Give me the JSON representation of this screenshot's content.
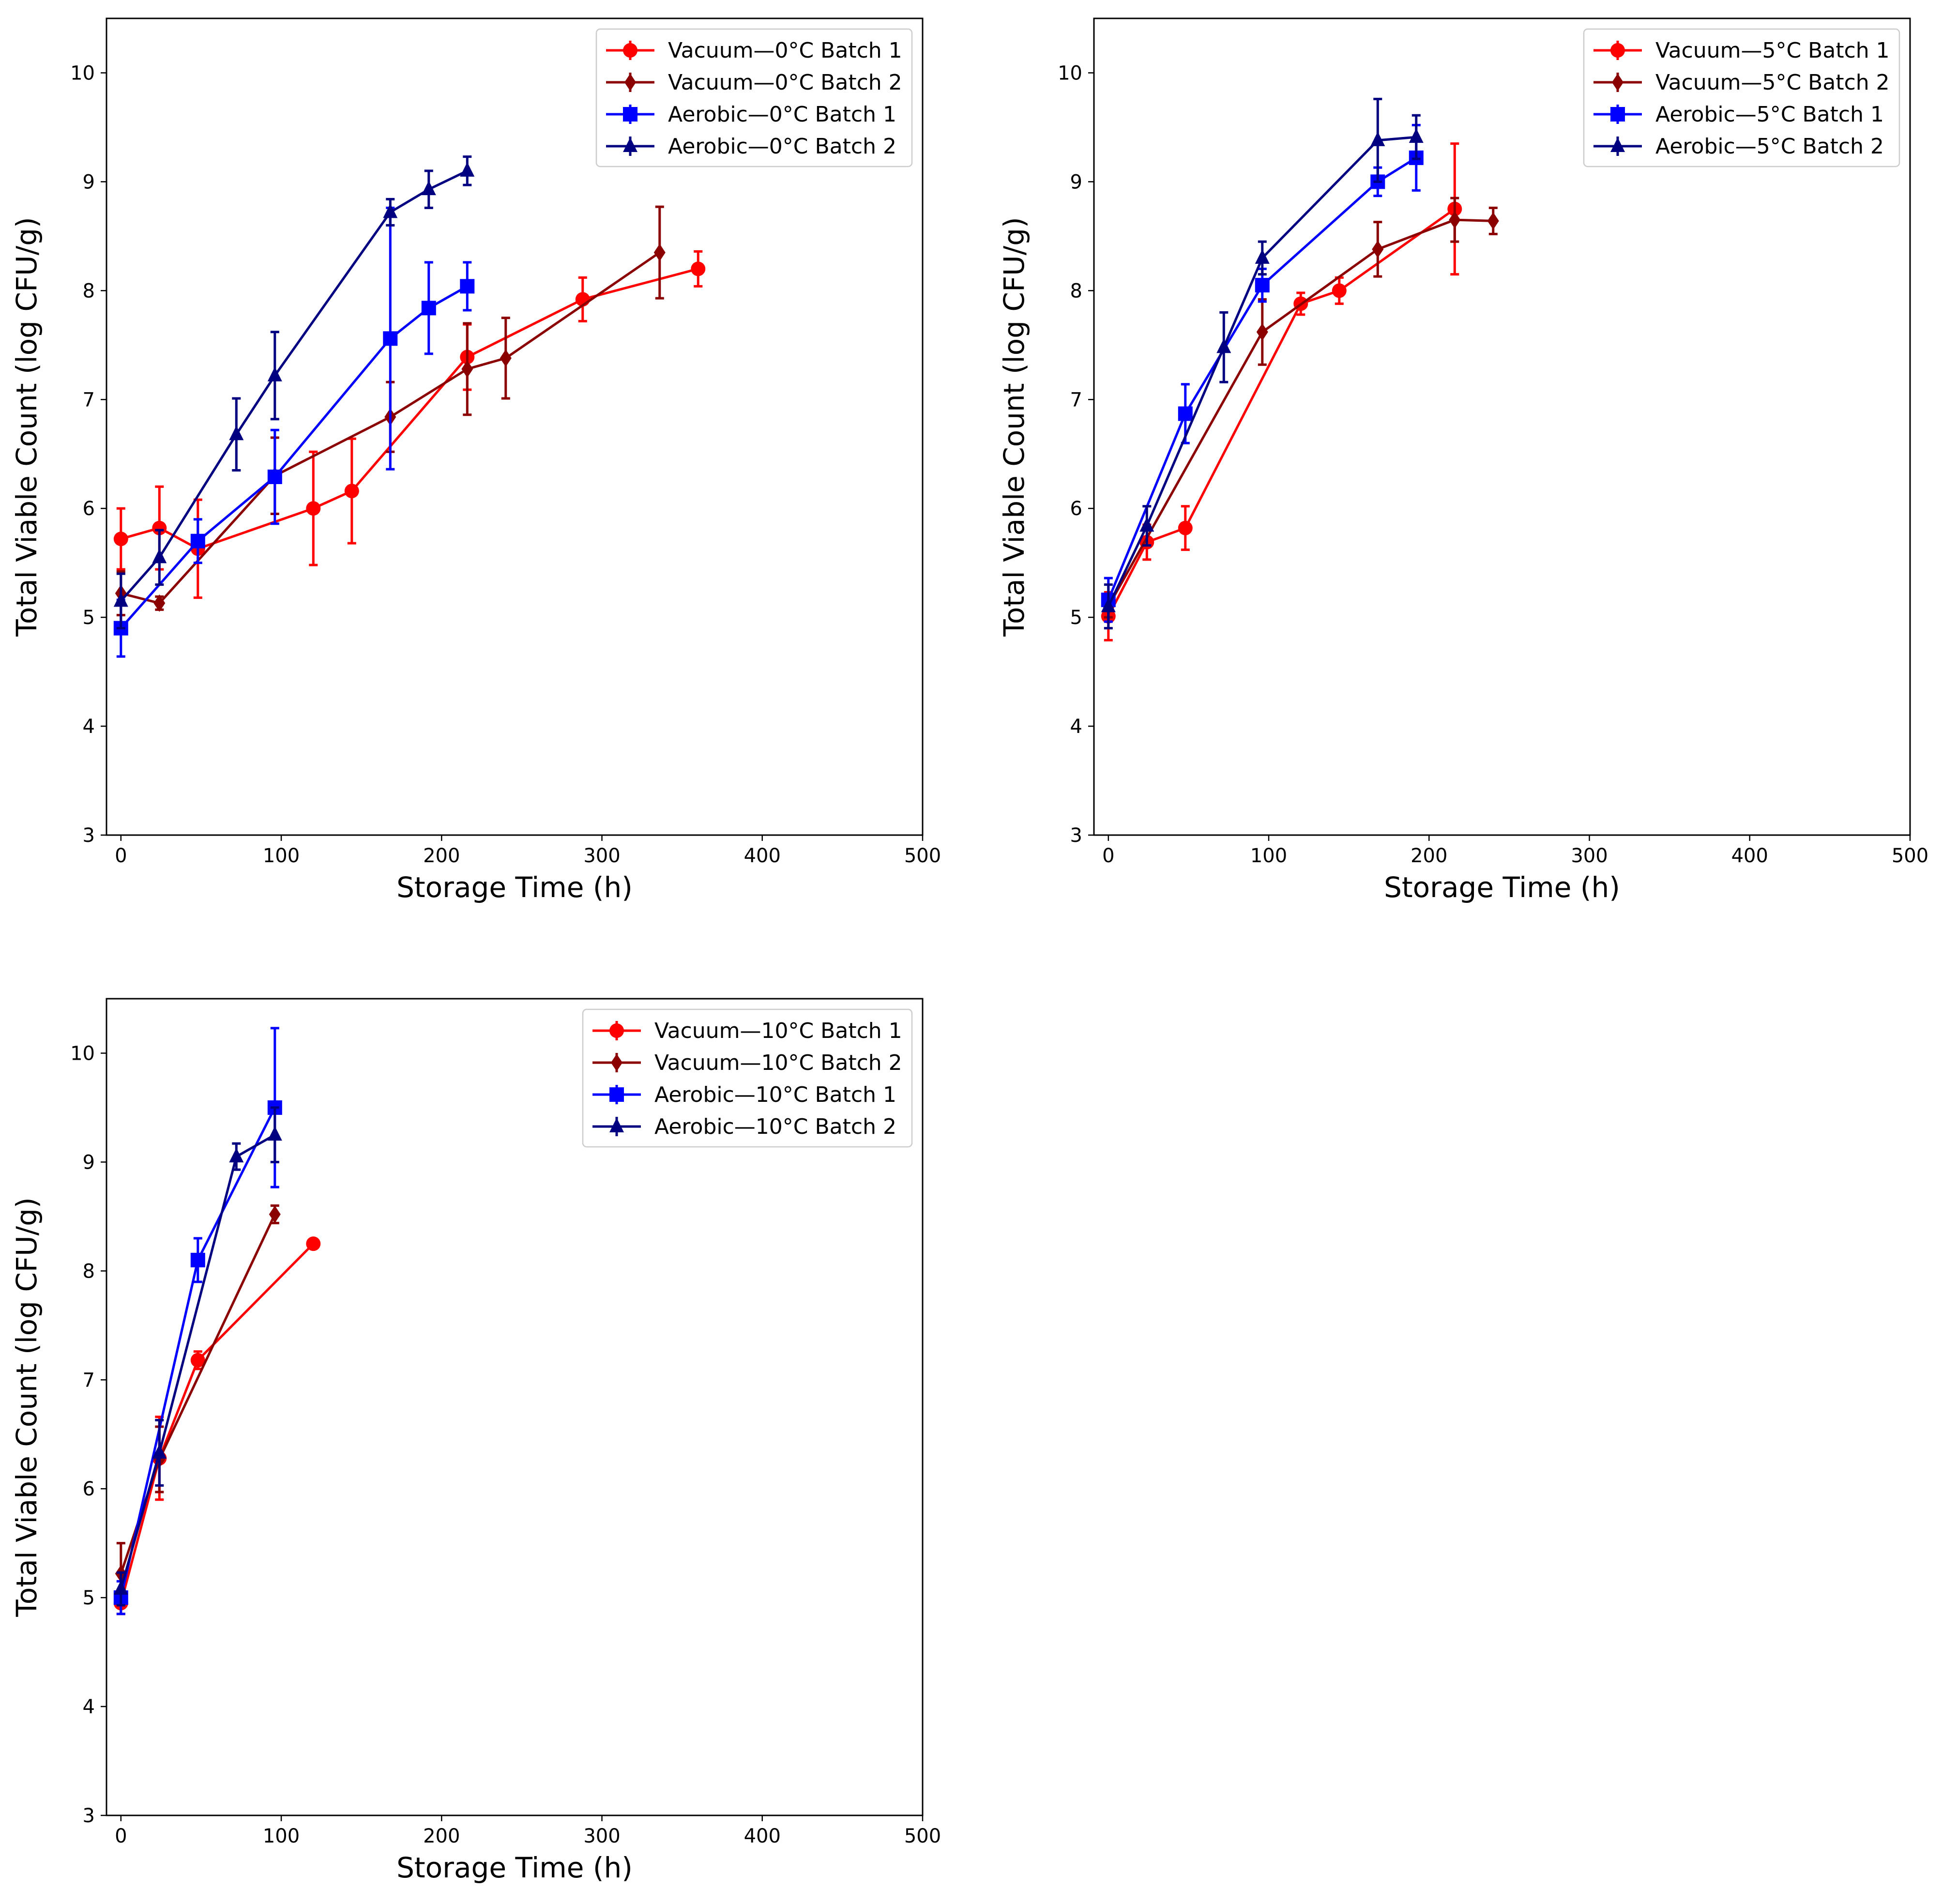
{
  "chart_data": [
    {
      "type": "line",
      "title": "",
      "xlabel": "Storage Time (h)",
      "ylabel": "Total Viable Count (log CFU/g)",
      "xlim": [
        -9,
        500
      ],
      "ylim": [
        3,
        10.5
      ],
      "xticks": [
        0,
        100,
        200,
        300,
        400,
        500
      ],
      "yticks": [
        3,
        4,
        5,
        6,
        7,
        8,
        9,
        10
      ],
      "grid": false,
      "legend_position": "top-right",
      "series": [
        {
          "name": "Vacuum—0°C Batch 1",
          "color": "#ff0000",
          "marker": "circle",
          "x": [
            0,
            24,
            48,
            120,
            144,
            216,
            288,
            360
          ],
          "y": [
            5.72,
            5.82,
            5.63,
            6.0,
            6.16,
            7.39,
            7.92,
            8.2
          ],
          "err": [
            0.28,
            0.38,
            0.45,
            0.52,
            0.48,
            0.3,
            0.2,
            0.16
          ]
        },
        {
          "name": "Vacuum—0°C Batch 2",
          "color": "#8b0000",
          "marker": "diamond",
          "x": [
            0,
            24,
            96,
            168,
            216,
            240,
            336
          ],
          "y": [
            5.22,
            5.13,
            6.3,
            6.84,
            7.28,
            7.38,
            8.35
          ],
          "err": [
            0.2,
            0.06,
            0.35,
            0.32,
            0.42,
            0.37,
            0.42
          ]
        },
        {
          "name": "Aerobic—0°C Batch 1",
          "color": "#0000ff",
          "marker": "square",
          "x": [
            0,
            48,
            96,
            168,
            192,
            216
          ],
          "y": [
            4.9,
            5.7,
            6.29,
            7.56,
            7.84,
            8.04
          ],
          "err": [
            0.26,
            0.2,
            0.43,
            1.2,
            0.42,
            0.22
          ]
        },
        {
          "name": "Aerobic—0°C Batch 2",
          "color": "#000080",
          "marker": "triangle",
          "x": [
            0,
            24,
            72,
            96,
            168,
            192,
            216
          ],
          "y": [
            5.15,
            5.55,
            6.68,
            7.22,
            8.72,
            8.93,
            9.1
          ],
          "err": [
            0.25,
            0.25,
            0.33,
            0.4,
            0.12,
            0.17,
            0.13
          ]
        }
      ]
    },
    {
      "type": "line",
      "title": "",
      "xlabel": "Storage Time (h)",
      "ylabel": "Total Viable Count (log CFU/g)",
      "xlim": [
        -9,
        500
      ],
      "ylim": [
        3,
        10.5
      ],
      "xticks": [
        0,
        100,
        200,
        300,
        400,
        500
      ],
      "yticks": [
        3,
        4,
        5,
        6,
        7,
        8,
        9,
        10
      ],
      "grid": false,
      "legend_position": "top-right",
      "series": [
        {
          "name": "Vacuum—5°C Batch 1",
          "color": "#ff0000",
          "marker": "circle",
          "x": [
            0,
            24,
            48,
            120,
            144,
            216
          ],
          "y": [
            5.01,
            5.69,
            5.82,
            7.88,
            8.0,
            8.75
          ],
          "err": [
            0.22,
            0.16,
            0.2,
            0.1,
            0.12,
            0.6
          ]
        },
        {
          "name": "Vacuum—5°C Batch 2",
          "color": "#8b0000",
          "marker": "diamond",
          "x": [
            0,
            96,
            168,
            216,
            240
          ],
          "y": [
            5.1,
            7.62,
            8.38,
            8.65,
            8.64
          ],
          "err": [
            0.1,
            0.3,
            0.25,
            0.2,
            0.12
          ]
        },
        {
          "name": "Aerobic—5°C Batch 1",
          "color": "#0000ff",
          "marker": "square",
          "x": [
            0,
            48,
            96,
            168,
            192
          ],
          "y": [
            5.16,
            6.87,
            8.05,
            9.0,
            9.22
          ],
          "err": [
            0.2,
            0.27,
            0.15,
            0.13,
            0.3
          ]
        },
        {
          "name": "Aerobic—5°C Batch 2",
          "color": "#000080",
          "marker": "triangle",
          "x": [
            0,
            24,
            72,
            96,
            168,
            192
          ],
          "y": [
            5.1,
            5.84,
            7.48,
            8.3,
            9.38,
            9.41
          ],
          "err": [
            0.2,
            0.18,
            0.32,
            0.15,
            0.38,
            0.2
          ]
        }
      ]
    },
    {
      "type": "line",
      "title": "",
      "xlabel": "Storage Time (h)",
      "ylabel": "Total Viable Count (log CFU/g)",
      "xlim": [
        -9,
        500
      ],
      "ylim": [
        3,
        10.5
      ],
      "xticks": [
        0,
        100,
        200,
        300,
        400,
        500
      ],
      "yticks": [
        3,
        4,
        5,
        6,
        7,
        8,
        9,
        10
      ],
      "grid": false,
      "legend_position": "top-right",
      "series": [
        {
          "name": "Vacuum—10°C Batch 1",
          "color": "#ff0000",
          "marker": "circle",
          "x": [
            0,
            24,
            48,
            120
          ],
          "y": [
            4.95,
            6.28,
            7.18,
            8.25
          ],
          "err": [
            0.1,
            0.38,
            0.08,
            0.02
          ]
        },
        {
          "name": "Vacuum—10°C Batch 2",
          "color": "#8b0000",
          "marker": "diamond",
          "x": [
            0,
            24,
            96
          ],
          "y": [
            5.22,
            6.27,
            8.52
          ],
          "err": [
            0.28,
            0.3,
            0.08
          ]
        },
        {
          "name": "Aerobic—10°C Batch 1",
          "color": "#0000ff",
          "marker": "square",
          "x": [
            0,
            48,
            96
          ],
          "y": [
            5.0,
            8.1,
            9.5
          ],
          "err": [
            0.15,
            0.2,
            0.73
          ]
        },
        {
          "name": "Aerobic—10°C Batch 2",
          "color": "#000080",
          "marker": "triangle",
          "x": [
            0,
            24,
            72,
            96
          ],
          "y": [
            5.08,
            6.33,
            9.05,
            9.25
          ],
          "err": [
            0.15,
            0.3,
            0.12,
            0.25
          ]
        }
      ]
    }
  ]
}
